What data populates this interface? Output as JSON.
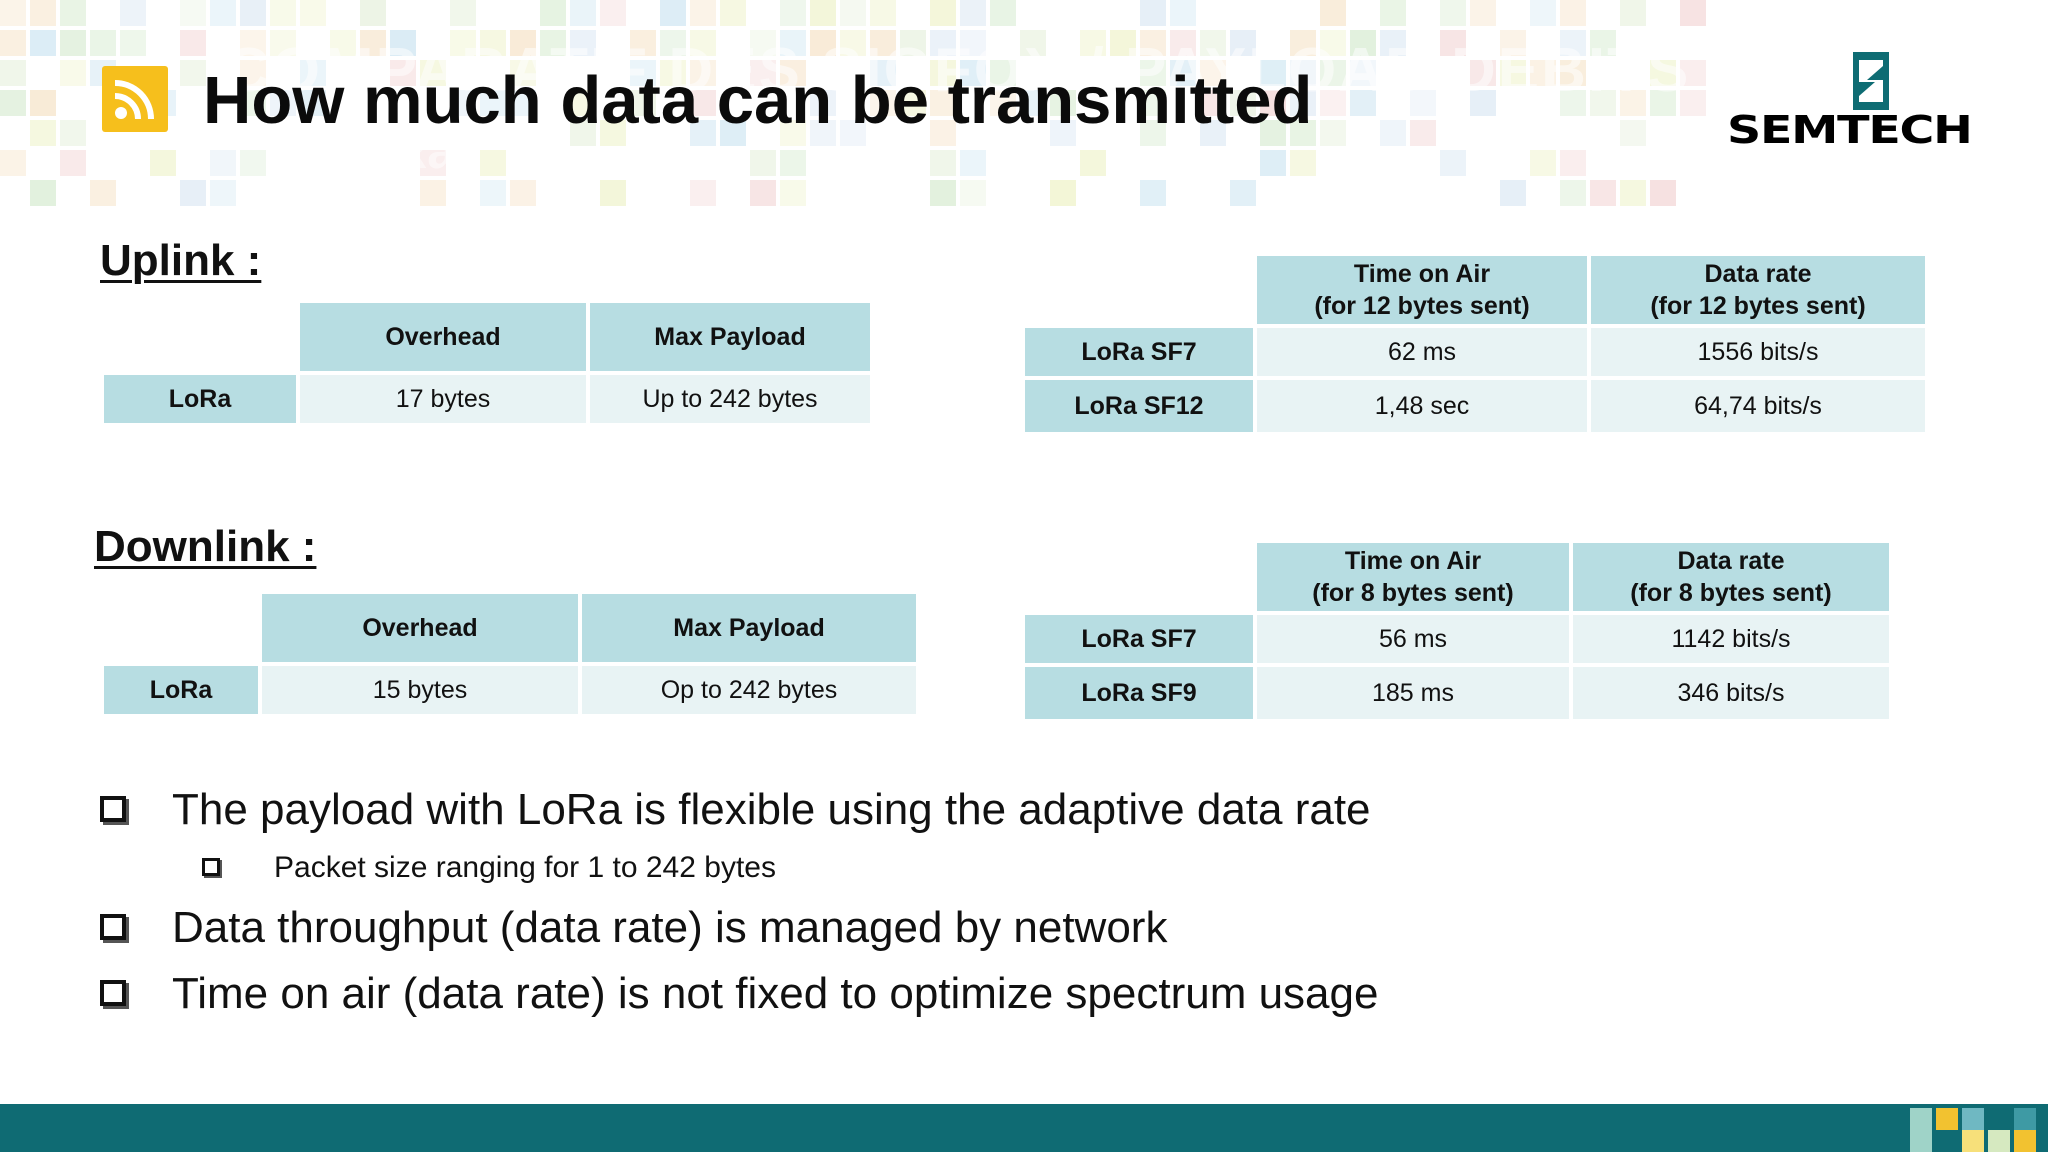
{
  "slide": {
    "title": "How much data can be transmitted",
    "ghost_title": "COMPARATIF DES SIGFOX / PAYLOAD DEBITS",
    "ghost_sub": "LoRa",
    "logo_text": "SEMTECH",
    "rss_icon": "rss-feed-icon",
    "colors": {
      "header_cell": "#b7dde2",
      "data_cell": "#e8f3f4",
      "footer": "#0f6b73",
      "rss_icon": "#f6bf1c"
    }
  },
  "uplink": {
    "heading": "Uplink :",
    "payload_table": {
      "headers": [
        "Overhead",
        "Max Payload"
      ],
      "row_label": "LoRa",
      "values": [
        "17 bytes",
        "Up to 242 bytes"
      ]
    },
    "rate_table": {
      "headers": [
        {
          "line1": "Time on Air",
          "line2": "(for 12 bytes sent)"
        },
        {
          "line1": "Data rate",
          "line2": "(for 12 bytes sent)"
        }
      ],
      "rows": [
        {
          "label": "LoRa SF7",
          "time": "62 ms",
          "rate": "1556 bits/s"
        },
        {
          "label": "LoRa SF12",
          "time": "1,48 sec",
          "rate": "64,74 bits/s"
        }
      ]
    }
  },
  "downlink": {
    "heading": "Downlink :",
    "payload_table": {
      "headers": [
        "Overhead",
        "Max Payload"
      ],
      "row_label": "LoRa",
      "values": [
        "15 bytes",
        "Op to 242 bytes"
      ]
    },
    "rate_table": {
      "headers": [
        {
          "line1": "Time on Air",
          "line2": "(for 8 bytes sent)"
        },
        {
          "line1": "Data rate",
          "line2": "(for 8 bytes sent)"
        }
      ],
      "rows": [
        {
          "label": "LoRa SF7",
          "time": "56 ms",
          "rate": "1142 bits/s"
        },
        {
          "label": "LoRa SF9",
          "time": "185 ms",
          "rate": "346 bits/s"
        }
      ]
    }
  },
  "bullets": [
    "The payload with LoRa is flexible using the adaptive data rate",
    "Packet size ranging for 1 to 242 bytes",
    "Data throughput (data rate) is managed by network",
    "Time on air (data rate) is not fixed to optimize spectrum usage"
  ]
}
